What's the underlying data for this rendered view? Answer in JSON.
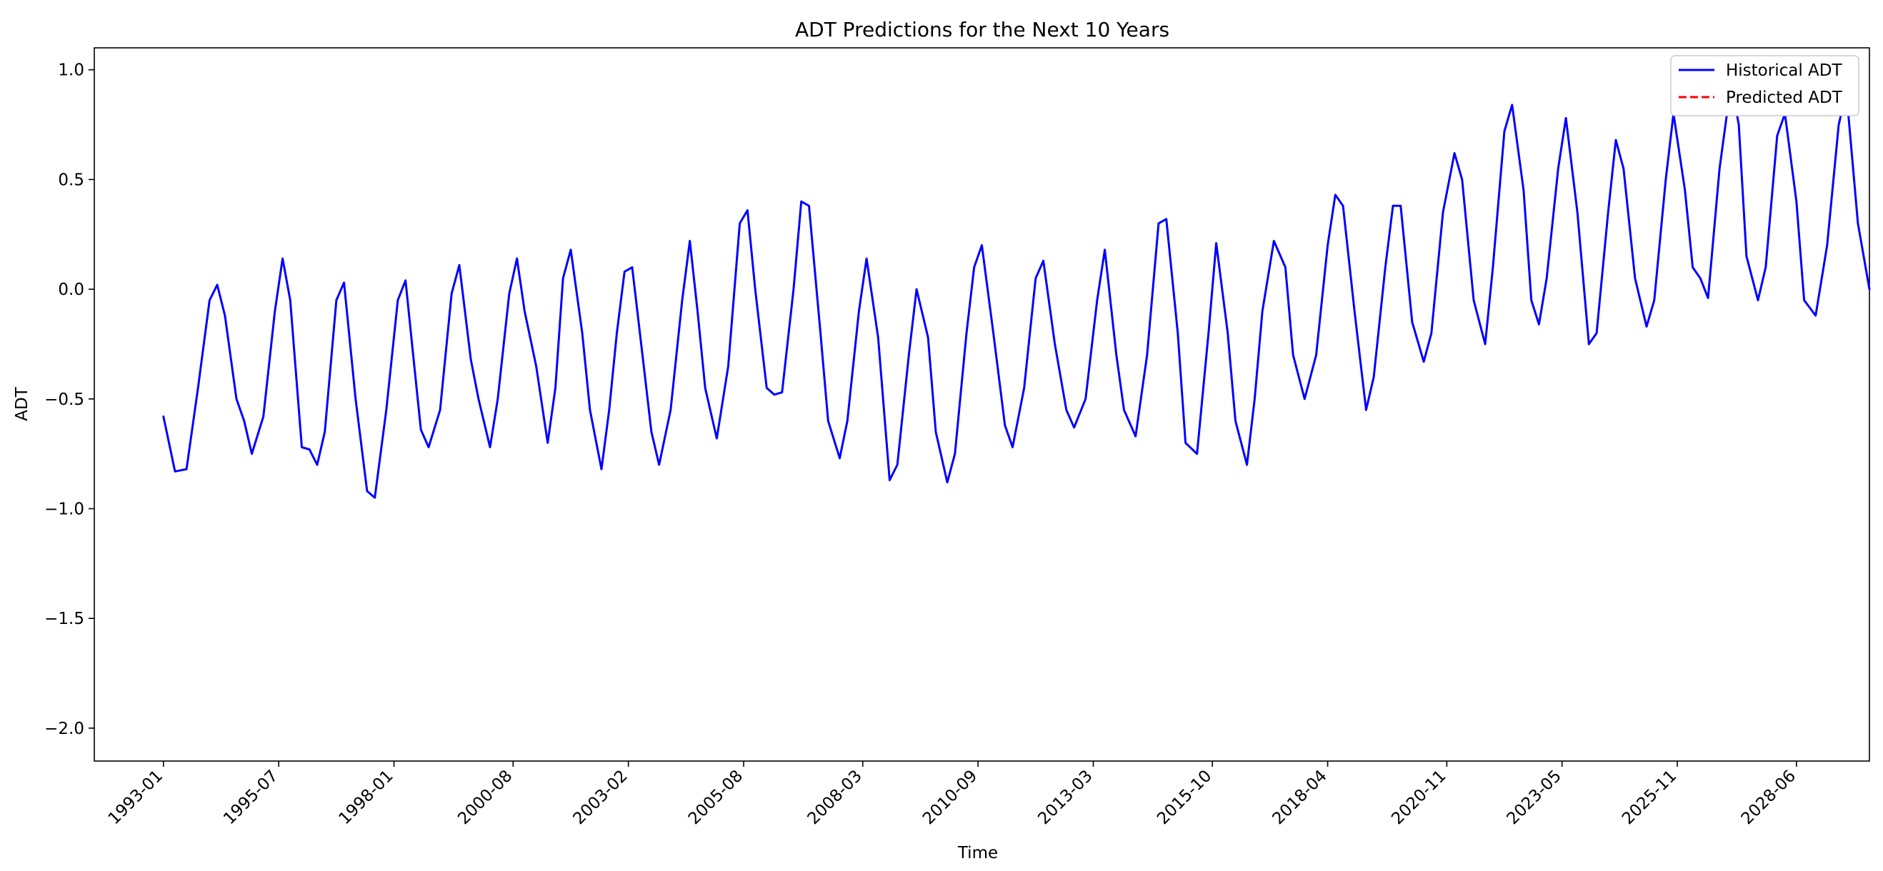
{
  "chart_data": {
    "type": "line",
    "title": "ADT Predictions for the Next 10 Years",
    "xlabel": "Time",
    "ylabel": "ADT",
    "xlim": [
      "1991-07",
      "2030-01"
    ],
    "ylim": [
      -2.15,
      1.1
    ],
    "x_ticks": [
      "1993-01",
      "1995-07",
      "1998-01",
      "2000-08",
      "2003-02",
      "2005-08",
      "2008-03",
      "2010-09",
      "2013-03",
      "2015-10",
      "2018-04",
      "2020-11",
      "2023-05",
      "2025-11",
      "2028-06"
    ],
    "y_ticks": [
      1.0,
      0.5,
      0.0,
      -0.5,
      -1.0,
      -1.5,
      -2.0
    ],
    "y_tick_labels": [
      "1.0",
      "0.5",
      "0.0",
      "−0.5",
      "−1.0",
      "−1.5",
      "−2.0"
    ],
    "grid": false,
    "legend_position": "top-right",
    "series": [
      {
        "name": "Historical ADT",
        "color": "#0000ff",
        "style": "solid",
        "points": [
          [
            "1993-01",
            -0.58
          ],
          [
            "1993-04",
            -0.83
          ],
          [
            "1993-07",
            -0.82
          ],
          [
            "1993-10",
            -0.45
          ],
          [
            "1994-01",
            -0.05
          ],
          [
            "1994-03",
            0.02
          ],
          [
            "1994-05",
            -0.12
          ],
          [
            "1994-08",
            -0.5
          ],
          [
            "1994-10",
            -0.6
          ],
          [
            "1994-12",
            -0.75
          ],
          [
            "1995-03",
            -0.58
          ],
          [
            "1995-06",
            -0.1
          ],
          [
            "1995-08",
            0.14
          ],
          [
            "1995-10",
            -0.05
          ],
          [
            "1996-01",
            -0.72
          ],
          [
            "1996-03",
            -0.73
          ],
          [
            "1996-05",
            -0.8
          ],
          [
            "1996-07",
            -0.65
          ],
          [
            "1996-10",
            -0.05
          ],
          [
            "1996-12",
            0.03
          ],
          [
            "1997-03",
            -0.5
          ],
          [
            "1997-06",
            -0.92
          ],
          [
            "1997-08",
            -0.95
          ],
          [
            "1997-11",
            -0.55
          ],
          [
            "1998-02",
            -0.05
          ],
          [
            "1998-04",
            0.04
          ],
          [
            "1998-06",
            -0.3
          ],
          [
            "1998-08",
            -0.64
          ],
          [
            "1998-10",
            -0.72
          ],
          [
            "1999-01",
            -0.55
          ],
          [
            "1999-04",
            -0.02
          ],
          [
            "1999-06",
            0.11
          ],
          [
            "1999-09",
            -0.32
          ],
          [
            "1999-11",
            -0.5
          ],
          [
            "2000-02",
            -0.72
          ],
          [
            "2000-04",
            -0.5
          ],
          [
            "2000-07",
            -0.02
          ],
          [
            "2000-09",
            0.14
          ],
          [
            "2000-11",
            -0.1
          ],
          [
            "2001-02",
            -0.35
          ],
          [
            "2001-05",
            -0.7
          ],
          [
            "2001-07",
            -0.45
          ],
          [
            "2001-09",
            0.05
          ],
          [
            "2001-11",
            0.18
          ],
          [
            "2002-02",
            -0.2
          ],
          [
            "2002-04",
            -0.55
          ],
          [
            "2002-07",
            -0.82
          ],
          [
            "2002-09",
            -0.55
          ],
          [
            "2002-11",
            -0.2
          ],
          [
            "2003-01",
            0.08
          ],
          [
            "2003-03",
            0.1
          ],
          [
            "2003-06",
            -0.35
          ],
          [
            "2003-08",
            -0.65
          ],
          [
            "2003-10",
            -0.8
          ],
          [
            "2004-01",
            -0.55
          ],
          [
            "2004-04",
            -0.05
          ],
          [
            "2004-06",
            0.22
          ],
          [
            "2004-08",
            -0.1
          ],
          [
            "2004-10",
            -0.45
          ],
          [
            "2005-01",
            -0.68
          ],
          [
            "2005-04",
            -0.35
          ],
          [
            "2005-07",
            0.3
          ],
          [
            "2005-09",
            0.36
          ],
          [
            "2005-11",
            0.0
          ],
          [
            "2006-02",
            -0.45
          ],
          [
            "2006-04",
            -0.48
          ],
          [
            "2006-06",
            -0.47
          ],
          [
            "2006-09",
            0.0
          ],
          [
            "2006-11",
            0.4
          ],
          [
            "2007-01",
            0.38
          ],
          [
            "2007-04",
            -0.2
          ],
          [
            "2007-06",
            -0.6
          ],
          [
            "2007-09",
            -0.77
          ],
          [
            "2007-11",
            -0.6
          ],
          [
            "2008-02",
            -0.1
          ],
          [
            "2008-04",
            0.14
          ],
          [
            "2008-07",
            -0.22
          ],
          [
            "2008-10",
            -0.87
          ],
          [
            "2008-12",
            -0.8
          ],
          [
            "2009-03",
            -0.3
          ],
          [
            "2009-05",
            0.0
          ],
          [
            "2009-08",
            -0.22
          ],
          [
            "2009-10",
            -0.65
          ],
          [
            "2010-01",
            -0.88
          ],
          [
            "2010-03",
            -0.75
          ],
          [
            "2010-06",
            -0.2
          ],
          [
            "2010-08",
            0.1
          ],
          [
            "2010-10",
            0.2
          ],
          [
            "2011-01",
            -0.2
          ],
          [
            "2011-04",
            -0.62
          ],
          [
            "2011-06",
            -0.72
          ],
          [
            "2011-09",
            -0.45
          ],
          [
            "2011-12",
            0.05
          ],
          [
            "2012-02",
            0.13
          ],
          [
            "2012-05",
            -0.25
          ],
          [
            "2012-08",
            -0.55
          ],
          [
            "2012-10",
            -0.63
          ],
          [
            "2013-01",
            -0.5
          ],
          [
            "2013-04",
            -0.05
          ],
          [
            "2013-06",
            0.18
          ],
          [
            "2013-09",
            -0.3
          ],
          [
            "2013-11",
            -0.55
          ],
          [
            "2014-02",
            -0.67
          ],
          [
            "2014-05",
            -0.3
          ],
          [
            "2014-08",
            0.3
          ],
          [
            "2014-10",
            0.32
          ],
          [
            "2015-01",
            -0.2
          ],
          [
            "2015-03",
            -0.7
          ],
          [
            "2015-06",
            -0.75
          ],
          [
            "2015-09",
            -0.2
          ],
          [
            "2015-11",
            0.21
          ],
          [
            "2016-02",
            -0.2
          ],
          [
            "2016-04",
            -0.6
          ],
          [
            "2016-07",
            -0.8
          ],
          [
            "2016-09",
            -0.5
          ],
          [
            "2016-11",
            -0.1
          ],
          [
            "2017-02",
            0.22
          ],
          [
            "2017-05",
            0.1
          ],
          [
            "2017-07",
            -0.3
          ],
          [
            "2017-10",
            -0.5
          ],
          [
            "2018-01",
            -0.3
          ],
          [
            "2018-04",
            0.2
          ],
          [
            "2018-06",
            0.43
          ],
          [
            "2018-08",
            0.38
          ],
          [
            "2018-11",
            -0.1
          ],
          [
            "2019-02",
            -0.55
          ],
          [
            "2019-04",
            -0.4
          ],
          [
            "2019-07",
            0.1
          ],
          [
            "2019-09",
            0.38
          ],
          [
            "2019-11",
            0.38
          ],
          [
            "2020-02",
            -0.15
          ],
          [
            "2020-05",
            -0.33
          ],
          [
            "2020-07",
            -0.2
          ],
          [
            "2020-10",
            0.35
          ],
          [
            "2021-01",
            0.62
          ],
          [
            "2021-03",
            0.5
          ],
          [
            "2021-06",
            -0.05
          ],
          [
            "2021-09",
            -0.25
          ],
          [
            "2021-11",
            0.1
          ],
          [
            "2022-02",
            0.72
          ],
          [
            "2022-04",
            0.84
          ],
          [
            "2022-07",
            0.45
          ],
          [
            "2022-09",
            -0.05
          ],
          [
            "2022-11",
            -0.16
          ],
          [
            "2023-01",
            0.05
          ],
          [
            "2023-04",
            0.55
          ],
          [
            "2023-06",
            0.78
          ],
          [
            "2023-09",
            0.35
          ],
          [
            "2023-12",
            -0.25
          ],
          [
            "2024-02",
            -0.2
          ],
          [
            "2024-05",
            0.35
          ],
          [
            "2024-07",
            0.68
          ],
          [
            "2024-09",
            0.55
          ],
          [
            "2024-12",
            0.05
          ],
          [
            "2025-03",
            -0.17
          ],
          [
            "2025-05",
            -0.05
          ],
          [
            "2025-08",
            0.5
          ],
          [
            "2025-10",
            0.8
          ],
          [
            "2026-01",
            0.45
          ],
          [
            "2026-03",
            0.1
          ],
          [
            "2026-05",
            0.05
          ],
          [
            "2026-07",
            -0.04
          ],
          [
            "2026-10",
            0.55
          ],
          [
            "2027-01",
            0.94
          ],
          [
            "2027-03",
            0.75
          ],
          [
            "2027-05",
            0.15
          ],
          [
            "2027-08",
            -0.05
          ],
          [
            "2027-10",
            0.1
          ],
          [
            "2028-01",
            0.7
          ],
          [
            "2028-03",
            0.8
          ],
          [
            "2028-06",
            0.4
          ],
          [
            "2028-08",
            -0.05
          ],
          [
            "2028-11",
            -0.12
          ],
          [
            "2029-02",
            0.2
          ],
          [
            "2029-05",
            0.75
          ],
          [
            "2029-07",
            0.9
          ],
          [
            "2029-10",
            0.3
          ],
          [
            "2030-01",
            0.0
          ]
        ]
      },
      {
        "name": "Predicted ADT",
        "color": "#ff0000",
        "style": "dashed",
        "points": []
      }
    ]
  }
}
